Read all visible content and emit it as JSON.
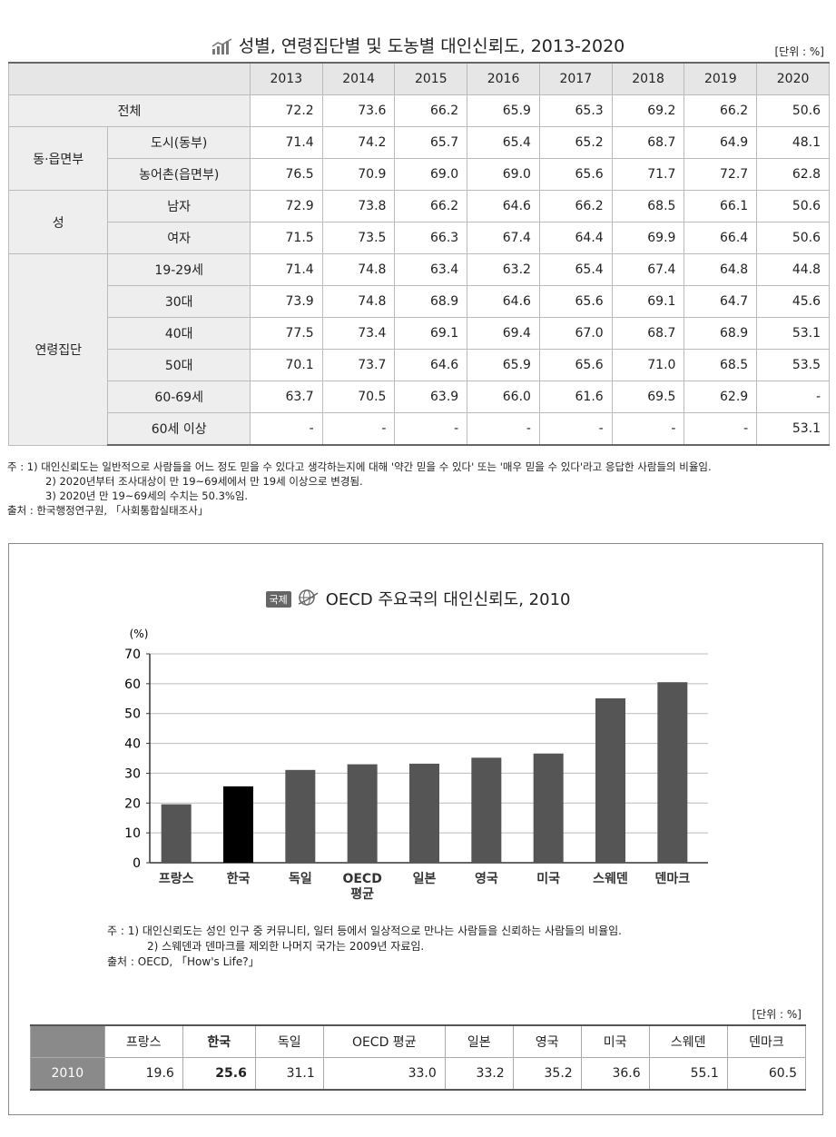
{
  "table1": {
    "title": "성별, 연령집단별 및 도농별 대인신뢰도, 2013-2020",
    "unit": "[단위 : %]",
    "years": [
      "2013",
      "2014",
      "2015",
      "2016",
      "2017",
      "2018",
      "2019",
      "2020"
    ],
    "groups": [
      {
        "label": "전체",
        "rows": [
          {
            "sub": "",
            "values": [
              "72.2",
              "73.6",
              "66.2",
              "65.9",
              "65.3",
              "69.2",
              "66.2",
              "50.6"
            ]
          }
        ]
      },
      {
        "label": "동·읍면부",
        "rows": [
          {
            "sub": "도시(동부)",
            "values": [
              "71.4",
              "74.2",
              "65.7",
              "65.4",
              "65.2",
              "68.7",
              "64.9",
              "48.1"
            ]
          },
          {
            "sub": "농어촌(읍면부)",
            "values": [
              "76.5",
              "70.9",
              "69.0",
              "69.0",
              "65.6",
              "71.7",
              "72.7",
              "62.8"
            ]
          }
        ]
      },
      {
        "label": "성",
        "rows": [
          {
            "sub": "남자",
            "values": [
              "72.9",
              "73.8",
              "66.2",
              "64.6",
              "66.2",
              "68.5",
              "66.1",
              "50.6"
            ]
          },
          {
            "sub": "여자",
            "values": [
              "71.5",
              "73.5",
              "66.3",
              "67.4",
              "64.4",
              "69.9",
              "66.4",
              "50.6"
            ]
          }
        ]
      },
      {
        "label": "연령집단",
        "rows": [
          {
            "sub": "19-29세",
            "values": [
              "71.4",
              "74.8",
              "63.4",
              "63.2",
              "65.4",
              "67.4",
              "64.8",
              "44.8"
            ]
          },
          {
            "sub": "30대",
            "values": [
              "73.9",
              "74.8",
              "68.9",
              "64.6",
              "65.6",
              "69.1",
              "64.7",
              "45.6"
            ]
          },
          {
            "sub": "40대",
            "values": [
              "77.5",
              "73.4",
              "69.1",
              "69.4",
              "67.0",
              "68.7",
              "68.9",
              "53.1"
            ]
          },
          {
            "sub": "50대",
            "values": [
              "70.1",
              "73.7",
              "64.6",
              "65.9",
              "65.6",
              "71.0",
              "68.5",
              "53.5"
            ]
          },
          {
            "sub": "60-69세",
            "values": [
              "63.7",
              "70.5",
              "63.9",
              "66.0",
              "61.6",
              "69.5",
              "62.9",
              "-"
            ]
          },
          {
            "sub": "60세 이상",
            "values": [
              "-",
              "-",
              "-",
              "-",
              "-",
              "-",
              "-",
              "53.1"
            ]
          }
        ]
      }
    ],
    "notes": [
      "주  : 1) 대인신뢰도는 일반적으로 사람들을 어느 정도 믿을 수 있다고 생각하는지에 대해 '약간 믿을 수 있다' 또는 '매우 믿을 수 있다'라고 응답한 사람들의 비율임.",
      "2) 2020년부터 조사대상이 만 19~69세에서 만 19세 이상으로 변경됨.",
      "3) 2020년 만 19~69세의 수치는 50.3%임.",
      "출처 : 한국행정연구원, 「사회통합실태조사」"
    ]
  },
  "international": {
    "badge": "국제",
    "title": "OECD 주요국의 대인신뢰도, 2010",
    "notes": [
      "주  : 1) 대인신뢰도는 성인 인구 중 커뮤니티, 일터 등에서 일상적으로 만나는 사람들을 신뢰하는 사람들의 비율임.",
      "2) 스웨덴과 덴마크를 제외한 나머지 국가는 2009년 자료임.",
      "출처 : OECD, 「How's Life?」"
    ],
    "unit": "[단위 : %]",
    "row_label": "2010"
  },
  "chart_data": {
    "type": "bar",
    "ylabel": "(%)",
    "ylim": [
      0,
      70
    ],
    "yticks": [
      0,
      10,
      20,
      30,
      40,
      50,
      60,
      70
    ],
    "grid": true,
    "categories": [
      "프랑스",
      "한국",
      "독일",
      "OECD 평균",
      "일본",
      "영국",
      "미국",
      "스웨덴",
      "덴마크"
    ],
    "category_lines": [
      [
        "프랑스"
      ],
      [
        "한국"
      ],
      [
        "독일"
      ],
      [
        "OECD",
        "평균"
      ],
      [
        "일본"
      ],
      [
        "영국"
      ],
      [
        "미국"
      ],
      [
        "스웨덴"
      ],
      [
        "덴마크"
      ]
    ],
    "values": [
      19.6,
      25.6,
      31.1,
      33.0,
      33.2,
      35.2,
      36.6,
      55.1,
      60.5
    ],
    "value_labels": [
      "19.6",
      "25.6",
      "31.1",
      "33.0",
      "33.2",
      "35.2",
      "36.6",
      "55.1",
      "60.5"
    ],
    "highlight": "한국",
    "colors": {
      "bar": "#555555",
      "highlight": "#000000"
    }
  }
}
